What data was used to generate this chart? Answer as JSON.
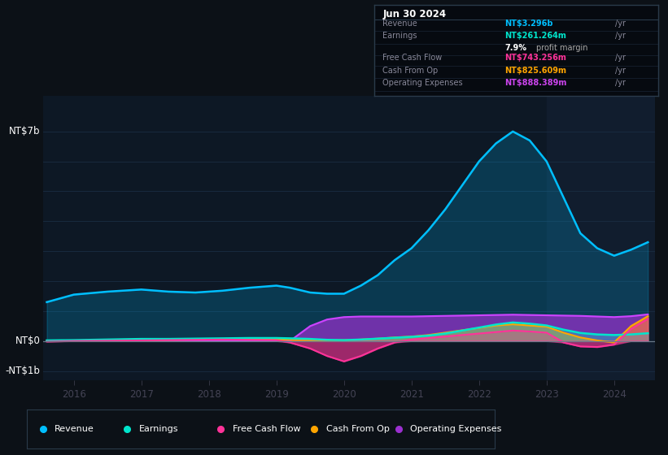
{
  "bg_color": "#0c1117",
  "plot_bg_color": "#0d1825",
  "grid_color": "#1a2d42",
  "years": [
    2015.6,
    2016.0,
    2016.5,
    2017.0,
    2017.4,
    2017.8,
    2018.2,
    2018.6,
    2019.0,
    2019.2,
    2019.5,
    2019.75,
    2020.0,
    2020.25,
    2020.5,
    2020.75,
    2021.0,
    2021.25,
    2021.5,
    2021.75,
    2022.0,
    2022.25,
    2022.5,
    2022.75,
    2023.0,
    2023.25,
    2023.5,
    2023.75,
    2024.0,
    2024.25,
    2024.5
  ],
  "revenue": [
    1.3,
    1.55,
    1.65,
    1.72,
    1.65,
    1.62,
    1.68,
    1.78,
    1.85,
    1.78,
    1.62,
    1.58,
    1.58,
    1.85,
    2.2,
    2.7,
    3.1,
    3.7,
    4.4,
    5.2,
    6.0,
    6.6,
    7.0,
    6.7,
    6.0,
    4.8,
    3.6,
    3.1,
    2.85,
    3.05,
    3.3
  ],
  "earnings": [
    0.02,
    0.03,
    0.05,
    0.07,
    0.07,
    0.08,
    0.09,
    0.1,
    0.1,
    0.09,
    0.07,
    0.04,
    0.03,
    0.05,
    0.08,
    0.11,
    0.14,
    0.18,
    0.25,
    0.35,
    0.45,
    0.55,
    0.62,
    0.58,
    0.52,
    0.38,
    0.27,
    0.22,
    0.2,
    0.22,
    0.26
  ],
  "free_cash_flow": [
    -0.02,
    0.0,
    0.01,
    0.02,
    0.03,
    0.04,
    0.05,
    0.04,
    0.03,
    -0.05,
    -0.25,
    -0.5,
    -0.68,
    -0.5,
    -0.25,
    -0.05,
    0.05,
    0.1,
    0.15,
    0.2,
    0.25,
    0.3,
    0.35,
    0.32,
    0.28,
    -0.05,
    -0.18,
    -0.2,
    -0.12,
    0.4,
    0.74
  ],
  "cash_from_op": [
    0.01,
    0.01,
    0.02,
    0.03,
    0.04,
    0.05,
    0.06,
    0.06,
    0.05,
    0.04,
    0.03,
    0.03,
    0.03,
    0.05,
    0.08,
    0.12,
    0.15,
    0.2,
    0.28,
    0.36,
    0.44,
    0.52,
    0.56,
    0.52,
    0.48,
    0.28,
    0.12,
    0.02,
    -0.05,
    0.5,
    0.83
  ],
  "op_expenses": [
    0.0,
    0.0,
    0.0,
    0.0,
    0.0,
    0.0,
    0.0,
    0.0,
    0.0,
    0.0,
    0.5,
    0.72,
    0.8,
    0.82,
    0.82,
    0.82,
    0.82,
    0.83,
    0.84,
    0.85,
    0.86,
    0.87,
    0.88,
    0.87,
    0.86,
    0.85,
    0.84,
    0.82,
    0.8,
    0.83,
    0.89
  ],
  "revenue_color": "#00bfff",
  "earnings_color": "#00e5cc",
  "fcf_color": "#ff3399",
  "cashop_color": "#ffa500",
  "opex_color": "#9b30d0",
  "opex_line_color": "#cc44ff",
  "ylim": [
    -1.3,
    8.2
  ],
  "xticks": [
    2016,
    2017,
    2018,
    2019,
    2020,
    2021,
    2022,
    2023,
    2024
  ],
  "shade_start": 2023.0,
  "xmax": 2024.6,
  "info_box": {
    "date": "Jun 30 2024",
    "revenue_val": "NT$3.296b",
    "earnings_val": "NT$261.264m",
    "profit_margin": "7.9%",
    "fcf_val": "NT$743.256m",
    "cashop_val": "NT$825.609m",
    "opex_val": "NT$888.389m"
  },
  "legend_items": [
    [
      "Revenue",
      "#00bfff"
    ],
    [
      "Earnings",
      "#00e5cc"
    ],
    [
      "Free Cash Flow",
      "#ff3399"
    ],
    [
      "Cash From Op",
      "#ffa500"
    ],
    [
      "Operating Expenses",
      "#9b30d0"
    ]
  ]
}
